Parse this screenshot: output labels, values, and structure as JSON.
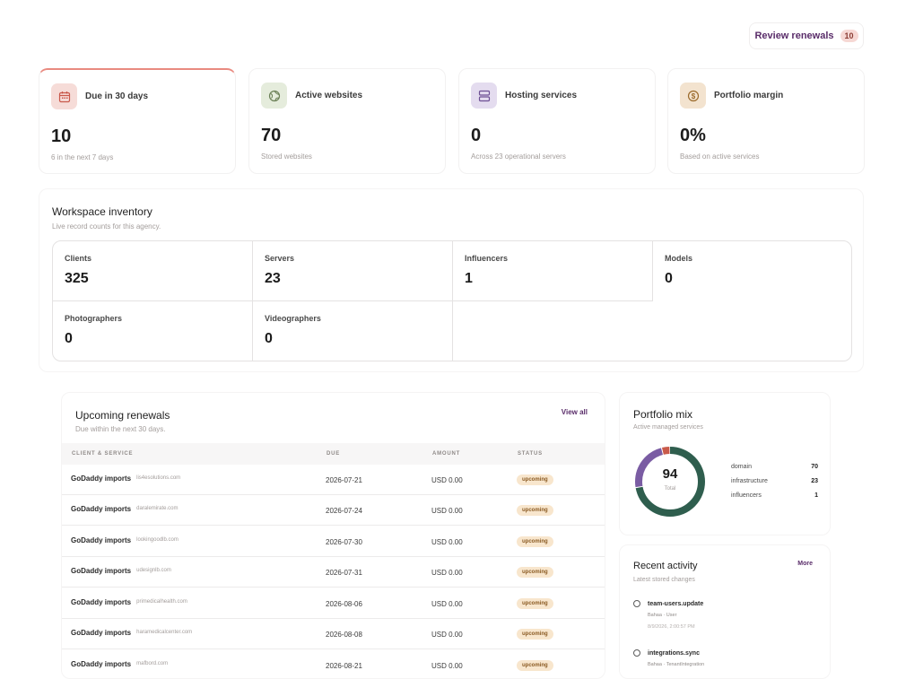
{
  "header": {
    "review_label": "Review renewals",
    "review_count": "10"
  },
  "kpis": [
    {
      "label": "Due in 30 days",
      "value": "10",
      "sub": "6 in the next 7 days",
      "icon": "calendar-icon",
      "color": "#f6dcd8"
    },
    {
      "label": "Active websites",
      "value": "70",
      "sub": "Stored websites",
      "icon": "globe-icon",
      "color": "#e5ecdc"
    },
    {
      "label": "Hosting services",
      "value": "0",
      "sub": "Across 23 operational servers",
      "icon": "server-icon",
      "color": "#e4dcef"
    },
    {
      "label": "Portfolio margin",
      "value": "0%",
      "sub": "Based on active services",
      "icon": "dollar-icon",
      "color": "#f3e3cf"
    }
  ],
  "inventory": {
    "title": "Workspace inventory",
    "subtitle": "Live record counts for this agency.",
    "items": [
      {
        "label": "Clients",
        "value": "325"
      },
      {
        "label": "Servers",
        "value": "23"
      },
      {
        "label": "Influencers",
        "value": "1"
      },
      {
        "label": "Models",
        "value": "0"
      },
      {
        "label": "Photographers",
        "value": "0"
      },
      {
        "label": "Videographers",
        "value": "0"
      }
    ]
  },
  "renewals": {
    "title": "Upcoming renewals",
    "subtitle": "Due within the next 30 days.",
    "view_all": "View all",
    "columns": [
      "CLIENT & SERVICE",
      "DUE",
      "AMOUNT",
      "STATUS"
    ],
    "rows": [
      {
        "client": "GoDaddy imports",
        "domain": "lis4esolutions.com",
        "due": "2026-07-21",
        "amount": "USD 0.00",
        "status": "upcoming"
      },
      {
        "client": "GoDaddy imports",
        "domain": "daralemirate.com",
        "due": "2026-07-24",
        "amount": "USD 0.00",
        "status": "upcoming"
      },
      {
        "client": "GoDaddy imports",
        "domain": "lookingoodlb.com",
        "due": "2026-07-30",
        "amount": "USD 0.00",
        "status": "upcoming"
      },
      {
        "client": "GoDaddy imports",
        "domain": "udesignlb.com",
        "due": "2026-07-31",
        "amount": "USD 0.00",
        "status": "upcoming"
      },
      {
        "client": "GoDaddy imports",
        "domain": "primedicalhealth.com",
        "due": "2026-08-06",
        "amount": "USD 0.00",
        "status": "upcoming"
      },
      {
        "client": "GoDaddy imports",
        "domain": "haramedicalcenter.com",
        "due": "2026-08-08",
        "amount": "USD 0.00",
        "status": "upcoming"
      },
      {
        "client": "GoDaddy imports",
        "domain": "mafbord.com",
        "due": "2026-08-21",
        "amount": "USD 0.00",
        "status": "upcoming"
      }
    ]
  },
  "portfolio_mix": {
    "title": "Portfolio mix",
    "subtitle": "Active managed services",
    "total": "94",
    "total_label": "Total",
    "segments": [
      {
        "name": "domain",
        "value": 70,
        "color": "#2f5e4e"
      },
      {
        "name": "infrastructure",
        "value": 23,
        "color": "#7a5ca3"
      },
      {
        "name": "influencers",
        "value": 1,
        "color": "#c95a4a"
      }
    ],
    "legend": [
      {
        "name": "domain",
        "value": "70"
      },
      {
        "name": "infrastructure",
        "value": "23"
      },
      {
        "name": "influencers",
        "value": "1"
      }
    ]
  },
  "activity": {
    "title": "Recent activity",
    "subtitle": "Latest stored changes",
    "more": "More",
    "items": [
      {
        "event": "team-users.update",
        "who": "Bahaa · User",
        "time": "8/9/2026, 2:00:57 PM"
      },
      {
        "event": "integrations.sync",
        "who": "Bahaa · TenantIntegration",
        "time": ""
      }
    ]
  }
}
